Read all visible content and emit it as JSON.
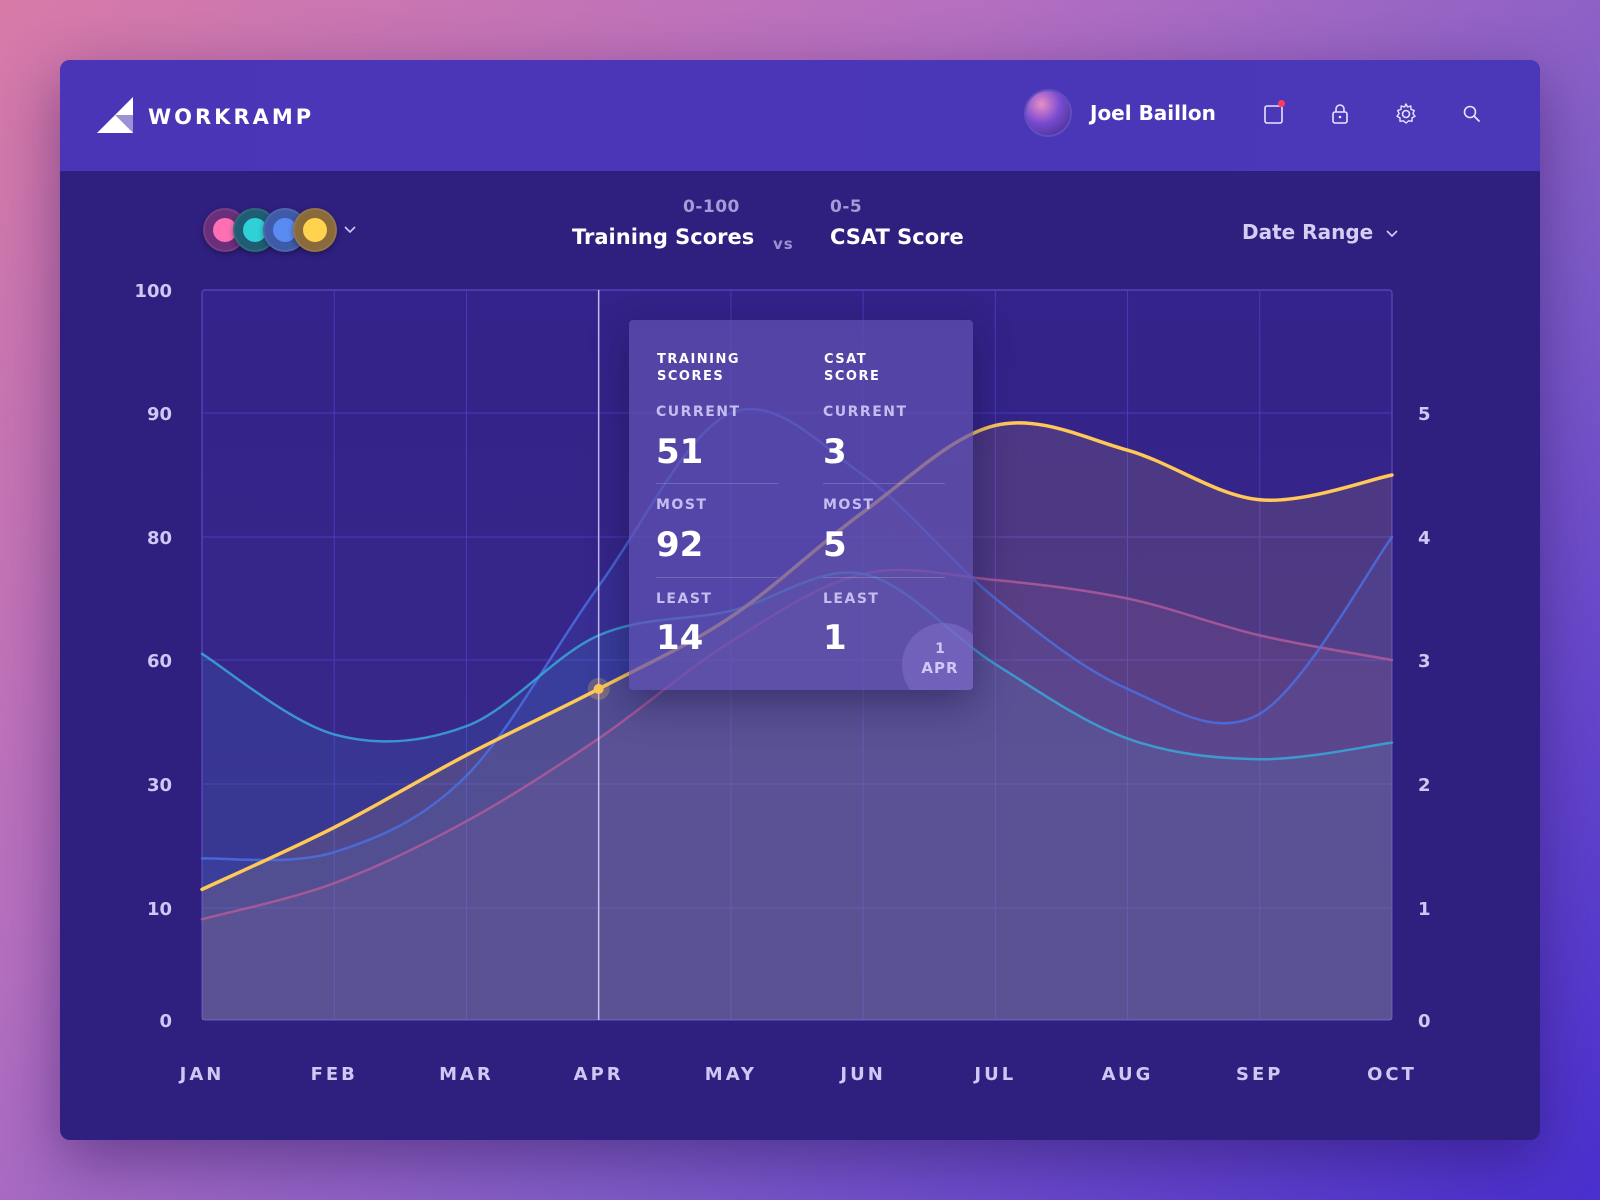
{
  "app": {
    "logo_text": "WORKRAMP"
  },
  "header": {
    "user_name": "Joel Baillon",
    "icons": [
      "notification-icon",
      "lock-icon",
      "gear-icon",
      "search-icon"
    ]
  },
  "toolbar": {
    "metric_left": {
      "range": "0-100",
      "title": "Training Scores"
    },
    "vs_label": "vs",
    "metric_right": {
      "range": "0-5",
      "title": "CSAT Score"
    },
    "date_range_label": "Date Range"
  },
  "colors": {
    "accent_yellow": "#ffc857",
    "line_blue": "#4b6fe0",
    "line_cyan": "#3aa7d8",
    "line_pink": "#b05a9a",
    "line_slate": "#5a6fb8"
  },
  "chart_data": {
    "type": "line",
    "categories": [
      "JAN",
      "FEB",
      "MAR",
      "APR",
      "MAY",
      "JUN",
      "JUL",
      "AUG",
      "SEP",
      "OCT"
    ],
    "y_left_ticks": [
      "100",
      "90",
      "80",
      "60",
      "30",
      "10",
      "0"
    ],
    "y_right_ticks": [
      "5",
      "4",
      "3",
      "2",
      "1",
      "0"
    ],
    "grid": true,
    "cursor_category": "APR",
    "series": [
      {
        "color": "#ffc857",
        "values": [
          13,
          23,
          37,
          53,
          67,
          82,
          89,
          87,
          83,
          85
        ]
      },
      {
        "color": "#4b6fe0",
        "values": [
          18,
          19,
          32,
          72,
          90,
          85,
          70,
          53,
          47,
          80
        ]
      },
      {
        "color": "#3aa7d8",
        "values": [
          61,
          42,
          44,
          64,
          68,
          74,
          59,
          41,
          36,
          40
        ]
      },
      {
        "color": "#b05a9a",
        "values": [
          9,
          14,
          24,
          41,
          63,
          74,
          73,
          70,
          64,
          60
        ]
      }
    ]
  },
  "tooltip": {
    "columns": [
      {
        "heading_line1": "TRAINING",
        "heading_line2": "SCORES",
        "current_label": "CURRENT",
        "current_value": "51",
        "most_label": "MOST",
        "most_value": "92",
        "least_label": "LEAST",
        "least_value": "14"
      },
      {
        "heading_line1": "CSAT",
        "heading_line2": "SCORE",
        "current_label": "CURRENT",
        "current_value": "3",
        "most_label": "MOST",
        "most_value": "5",
        "least_label": "LEAST",
        "least_value": "1"
      }
    ],
    "date_day": "1",
    "date_month": "APR"
  },
  "team_avatars": [
    {
      "color": "#ff6fb4"
    },
    {
      "color": "#2fd1d8"
    },
    {
      "color": "#5a8bf0"
    },
    {
      "color": "#ffd34d"
    }
  ]
}
